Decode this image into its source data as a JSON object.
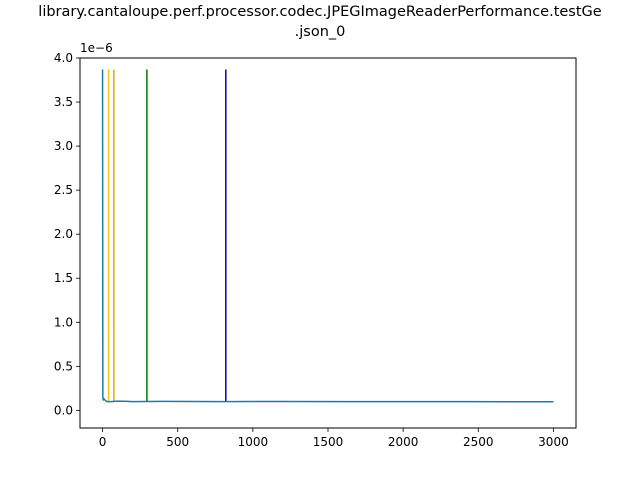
{
  "chart_data": {
    "type": "line",
    "title_line1": "library.cantaloupe.perf.processor.codec.JPEGImageReaderPerformance.testGe",
    "title_line2": ".json_0",
    "xlabel": "",
    "ylabel": "",
    "y_scale_label": "1e−6",
    "xlim": [
      -150,
      3150
    ],
    "ylim": [
      -0.2,
      4.0
    ],
    "x_ticks": [
      0,
      500,
      1000,
      1500,
      2000,
      2500,
      3000
    ],
    "y_ticks": [
      0.0,
      0.5,
      1.0,
      1.5,
      2.0,
      2.5,
      3.0,
      3.5,
      4.0
    ],
    "y_tick_labels": [
      "0.0",
      "0.5",
      "1.0",
      "1.5",
      "2.0",
      "2.5",
      "3.0",
      "3.5",
      "4.0"
    ],
    "grid": false,
    "legend": "none",
    "series": [
      {
        "color": "#1f77b4",
        "points": [
          [
            0,
            3.87
          ],
          [
            2,
            0.14
          ],
          [
            5,
            0.12
          ],
          [
            10,
            0.13
          ],
          [
            20,
            0.11
          ],
          [
            30,
            0.1
          ],
          [
            60,
            0.1
          ],
          [
            100,
            0.105
          ],
          [
            200,
            0.1
          ],
          [
            400,
            0.102
          ],
          [
            800,
            0.1
          ],
          [
            1200,
            0.101
          ],
          [
            1600,
            0.1
          ],
          [
            2000,
            0.1
          ],
          [
            2400,
            0.1
          ],
          [
            2800,
            0.098
          ],
          [
            3000,
            0.098
          ]
        ]
      }
    ],
    "vertical_lines": [
      {
        "x": 40,
        "y_top": 3.87,
        "color": "#f5c518"
      },
      {
        "x": 75,
        "y_top": 3.87,
        "color": "#e6a800"
      },
      {
        "x": 295,
        "y_top": 3.87,
        "color": "#008000"
      },
      {
        "x": 820,
        "y_top": 3.87,
        "color": "#0000cc"
      }
    ],
    "colors": {
      "axes": "#000000",
      "series": "#1f77b4"
    }
  }
}
